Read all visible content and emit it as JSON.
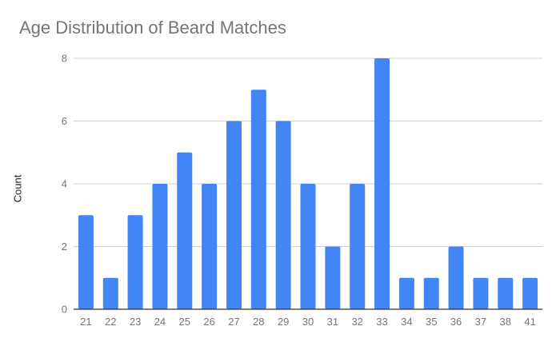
{
  "chart_data": {
    "type": "bar",
    "title": "Age Distribution of Beard Matches",
    "xlabel": "",
    "ylabel": "Count",
    "categories": [
      "21",
      "22",
      "23",
      "24",
      "25",
      "26",
      "27",
      "28",
      "29",
      "30",
      "31",
      "32",
      "33",
      "34",
      "35",
      "36",
      "37",
      "38",
      "41"
    ],
    "values": [
      3,
      1,
      3,
      4,
      5,
      4,
      6,
      7,
      6,
      4,
      2,
      4,
      8,
      1,
      1,
      2,
      1,
      1,
      1
    ],
    "ylim": [
      0,
      8
    ],
    "yticks": [
      0,
      2,
      4,
      6,
      8
    ],
    "grid": true,
    "legend": "none",
    "bar_color": "#4285f4"
  }
}
